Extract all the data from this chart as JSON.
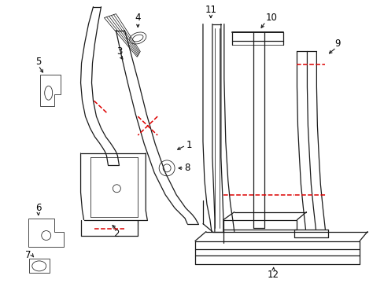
{
  "bg_color": "#ffffff",
  "line_color": "#1a1a1a",
  "red_color": "#dd0000",
  "label_color": "#000000",
  "arrow_color": "#1a1a1a",
  "figsize": [
    4.89,
    3.6
  ],
  "dpi": 100,
  "lw": 0.9,
  "lw_thin": 0.55,
  "lw_thick": 1.4,
  "font_size": 8.5
}
